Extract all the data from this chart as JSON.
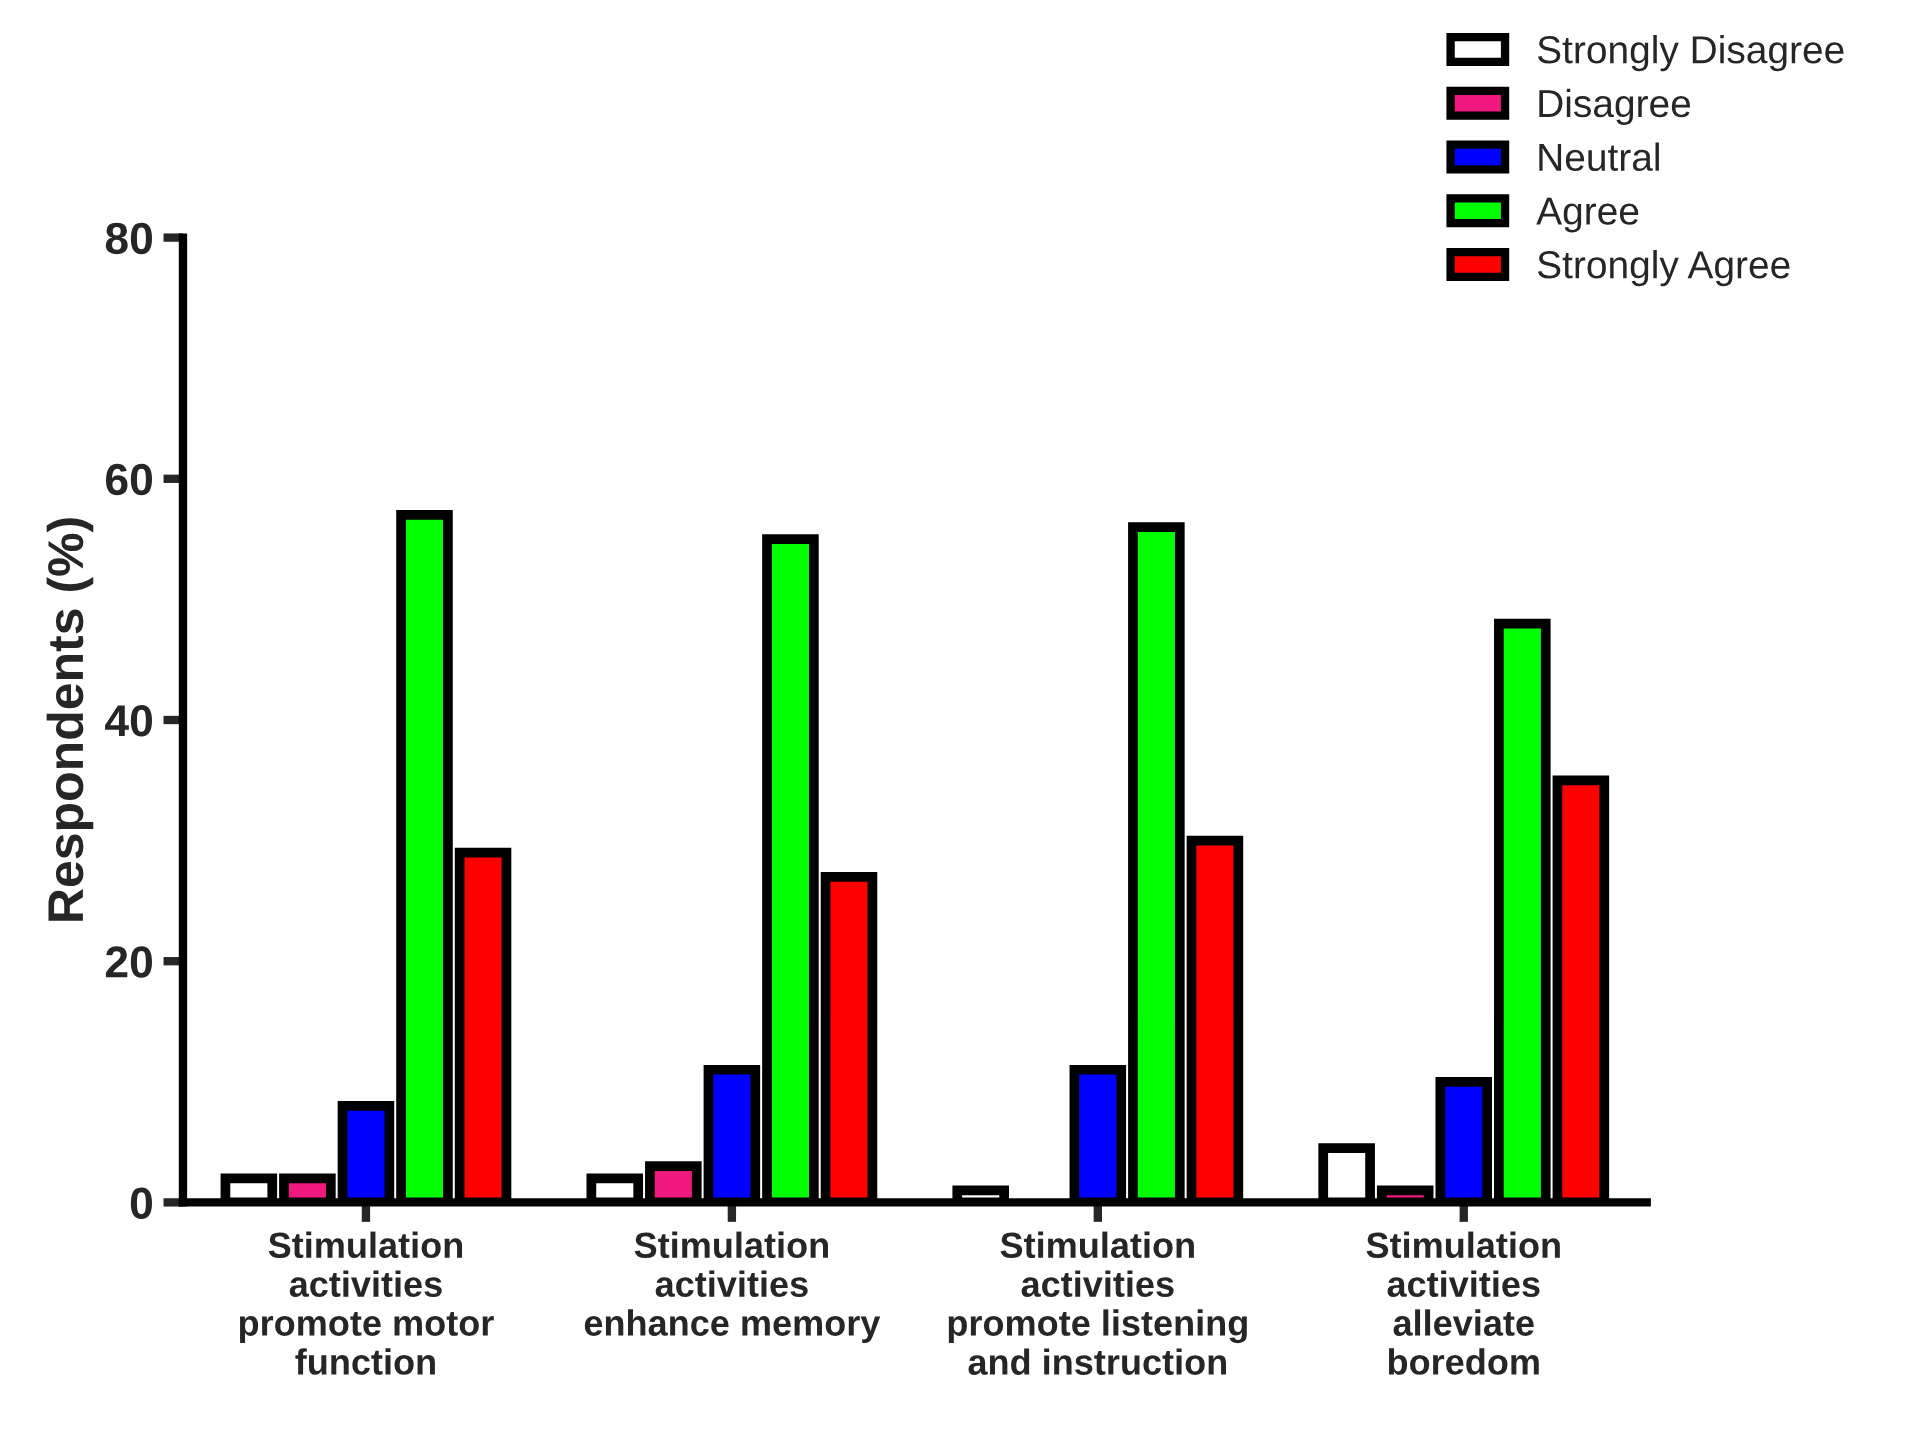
{
  "chart_data": {
    "type": "bar",
    "ylabel": "Respondents (%)",
    "categories": [
      "Stimulation\nactivities\npromote motor\nfunction",
      "Stimulation\nactivities\nenhance memory",
      "Stimulation\nactivities\npromote listening\nand instruction",
      "Stimulation\nactivities\nalleviate\nboredom"
    ],
    "series": [
      {
        "name": "Strongly Disagree",
        "color": "#ffffff",
        "values": [
          2,
          2,
          1,
          4.5
        ]
      },
      {
        "name": "Disagree",
        "color": "#f0197d",
        "values": [
          2,
          3,
          0,
          1
        ]
      },
      {
        "name": "Neutral",
        "color": "#0000ff",
        "values": [
          8,
          11,
          11,
          10
        ]
      },
      {
        "name": "Agree",
        "color": "#00ff00",
        "values": [
          57,
          55,
          56,
          48
        ]
      },
      {
        "name": "Strongly Agree",
        "color": "#ff0000",
        "values": [
          29,
          27,
          30,
          35
        ]
      }
    ],
    "ylim": [
      0,
      80
    ],
    "yticks": [
      0,
      20,
      40,
      60,
      80
    ],
    "grid": false,
    "legend": "top right"
  }
}
